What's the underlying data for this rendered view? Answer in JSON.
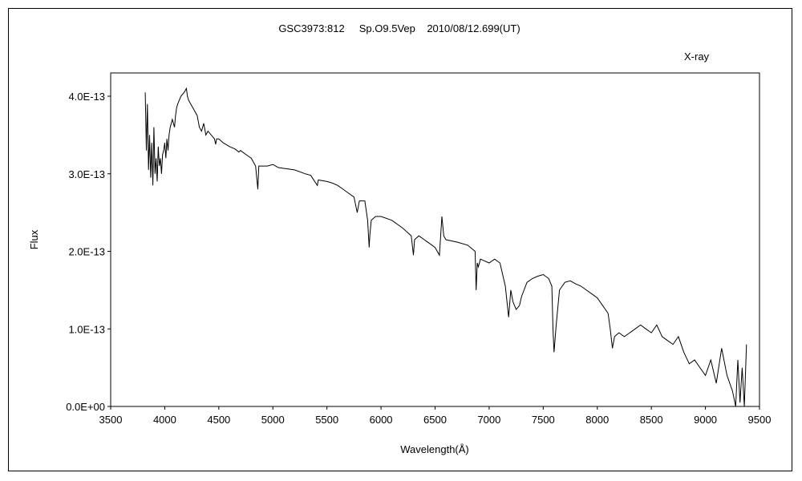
{
  "chart_data": {
    "type": "line",
    "title": "GSC3973:812     Sp.O9.5Vep    2010/08/12.699(UT)",
    "annotation": "X-ray",
    "xlabel": "Wavelength(Å)",
    "ylabel": "Flux",
    "xlim": [
      3500,
      9500
    ],
    "ylim": [
      0,
      4.3e-13
    ],
    "x_ticks": [
      3500,
      4000,
      4500,
      5000,
      5500,
      6000,
      6500,
      7000,
      7500,
      8000,
      8500,
      9000,
      9500
    ],
    "x_tick_labels": [
      "3500",
      "4000",
      "4500",
      "5000",
      "5500",
      "6000",
      "6500",
      "7000",
      "7500",
      "8000",
      "8500",
      "9000",
      "9500"
    ],
    "y_ticks": [
      0,
      1e-13,
      2e-13,
      3e-13,
      4e-13
    ],
    "y_tick_labels": [
      "0.0E+00",
      "1.0E-13",
      "2.0E-13",
      "3.0E-13",
      "4.0E-13"
    ],
    "grid": false,
    "line_color": "#000000",
    "series": [
      {
        "x": [
          3820,
          3830,
          3840,
          3850,
          3860,
          3870,
          3880,
          3890,
          3900,
          3910,
          3920,
          3930,
          3940,
          3950,
          3960,
          3970,
          3980,
          3990,
          4000,
          4010,
          4020,
          4030,
          4040,
          4050,
          4070,
          4090,
          4100,
          4110,
          4120,
          4150,
          4180,
          4200,
          4210,
          4220,
          4240,
          4260,
          4280,
          4300,
          4320,
          4340,
          4360,
          4380,
          4400,
          4430,
          4460,
          4471,
          4480,
          4500,
          4540,
          4600,
          4650,
          4686,
          4700,
          4750,
          4800,
          4840,
          4861,
          4870,
          4900,
          4950,
          5000,
          5050,
          5100,
          5200,
          5300,
          5350,
          5411,
          5420,
          5500,
          5550,
          5600,
          5650,
          5700,
          5750,
          5780,
          5800,
          5850,
          5876,
          5890,
          5896,
          5910,
          5950,
          6000,
          6100,
          6200,
          6280,
          6300,
          6310,
          6350,
          6400,
          6450,
          6500,
          6540,
          6563,
          6580,
          6600,
          6700,
          6800,
          6870,
          6880,
          6890,
          6900,
          6920,
          6950,
          7000,
          7050,
          7100,
          7150,
          7180,
          7200,
          7220,
          7250,
          7280,
          7300,
          7350,
          7400,
          7450,
          7500,
          7550,
          7580,
          7590,
          7600,
          7620,
          7650,
          7700,
          7750,
          7800,
          7850,
          7900,
          7950,
          8000,
          8050,
          8100,
          8120,
          8140,
          8160,
          8200,
          8250,
          8300,
          8350,
          8400,
          8450,
          8500,
          8550,
          8600,
          8650,
          8700,
          8750,
          8800,
          8850,
          8900,
          8950,
          9000,
          9050,
          9100,
          9150,
          9200,
          9250,
          9280,
          9300,
          9320,
          9340,
          9360,
          9380
        ],
        "y": [
          4.05e-13,
          3.3e-13,
          3.9e-13,
          3.05e-13,
          3.5e-13,
          2.95e-13,
          3.4e-13,
          2.85e-13,
          3.6e-13,
          3e-13,
          3.2e-13,
          2.9e-13,
          3.35e-13,
          3.1e-13,
          3.2e-13,
          3e-13,
          3.25e-13,
          3.3e-13,
          3.4e-13,
          3.2e-13,
          3.45e-13,
          3.3e-13,
          3.5e-13,
          3.6e-13,
          3.7e-13,
          3.6e-13,
          3.75e-13,
          3.85e-13,
          3.9e-13,
          4e-13,
          4.05e-13,
          4.1e-13,
          4e-13,
          3.95e-13,
          3.9e-13,
          3.85e-13,
          3.8e-13,
          3.75e-13,
          3.6e-13,
          3.55e-13,
          3.65e-13,
          3.5e-13,
          3.55e-13,
          3.5e-13,
          3.45e-13,
          3.38e-13,
          3.45e-13,
          3.45e-13,
          3.4e-13,
          3.35e-13,
          3.32e-13,
          3.28e-13,
          3.3e-13,
          3.25e-13,
          3.2e-13,
          3.1e-13,
          2.8e-13,
          3.1e-13,
          3.1e-13,
          3.1e-13,
          3.12e-13,
          3.08e-13,
          3.07e-13,
          3.05e-13,
          3e-13,
          2.98e-13,
          2.85e-13,
          2.92e-13,
          2.9e-13,
          2.88e-13,
          2.85e-13,
          2.8e-13,
          2.75e-13,
          2.7e-13,
          2.5e-13,
          2.65e-13,
          2.65e-13,
          2.4e-13,
          2.05e-13,
          2.2e-13,
          2.4e-13,
          2.45e-13,
          2.45e-13,
          2.4e-13,
          2.3e-13,
          2.2e-13,
          1.95e-13,
          2.15e-13,
          2.2e-13,
          2.15e-13,
          2.1e-13,
          2.05e-13,
          1.95e-13,
          2.45e-13,
          2.2e-13,
          2.15e-13,
          2.12e-13,
          2.08e-13,
          2e-13,
          1.5e-13,
          1.85e-13,
          1.8e-13,
          1.9e-13,
          1.88e-13,
          1.85e-13,
          1.9e-13,
          1.85e-13,
          1.55e-13,
          1.15e-13,
          1.5e-13,
          1.35e-13,
          1.25e-13,
          1.3e-13,
          1.42e-13,
          1.6e-13,
          1.65e-13,
          1.68e-13,
          1.7e-13,
          1.65e-13,
          1.55e-13,
          1e-13,
          7e-14,
          1.05e-13,
          1.5e-13,
          1.6e-13,
          1.62e-13,
          1.58e-13,
          1.55e-13,
          1.5e-13,
          1.45e-13,
          1.4e-13,
          1.3e-13,
          1.2e-13,
          1e-13,
          7.5e-14,
          9e-14,
          9.5e-14,
          9e-14,
          9.5e-14,
          1e-13,
          1.05e-13,
          1e-13,
          9.5e-14,
          1.05e-13,
          9e-14,
          8.5e-14,
          8e-14,
          9e-14,
          7e-14,
          5.5e-14,
          6e-14,
          5e-14,
          4e-14,
          6e-14,
          3e-14,
          7.5e-14,
          4e-14,
          2e-14,
          0.0,
          6e-14,
          5e-15,
          5e-14,
          0.0,
          8e-14
        ]
      }
    ]
  }
}
